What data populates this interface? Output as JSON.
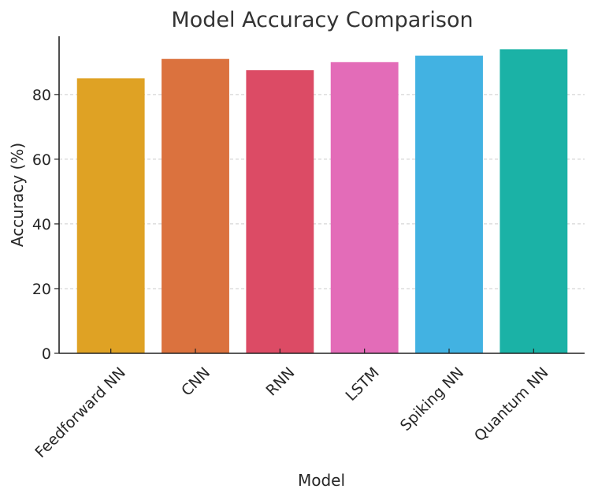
{
  "chart_data": {
    "type": "bar",
    "title": "Model Accuracy Comparison",
    "xlabel": "Model",
    "ylabel": "Accuracy (%)",
    "categories": [
      "Feedforward NN",
      "CNN",
      "RNN",
      "LSTM",
      "Spiking NN",
      "Quantum NN"
    ],
    "values": [
      85,
      91,
      87.5,
      90,
      92,
      94
    ],
    "colors": [
      "#DFA224",
      "#DB723E",
      "#DC4B65",
      "#E36CB8",
      "#42B2E2",
      "#1BB2A6"
    ],
    "ylim": [
      0,
      98
    ],
    "yticks": [
      0,
      20,
      40,
      60,
      80
    ],
    "grid": true,
    "x_tick_rotation": "45 degrees"
  }
}
